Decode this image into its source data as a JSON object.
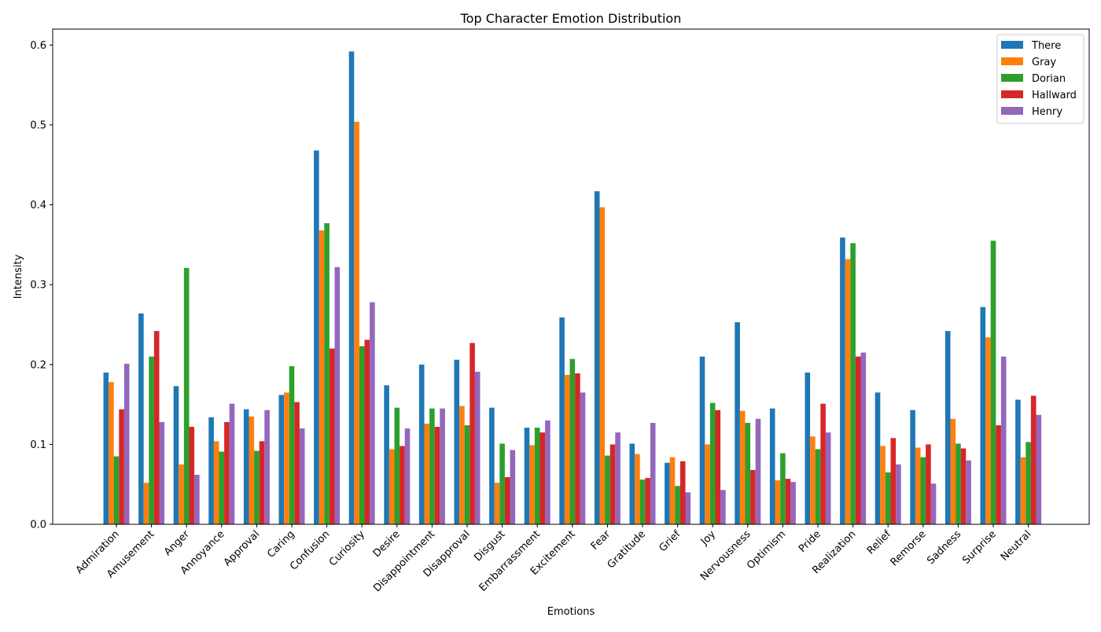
{
  "chart_data": {
    "type": "bar",
    "title": "Top Character Emotion Distribution",
    "xlabel": "Emotions",
    "ylabel": "Intensity",
    "ylim": [
      0,
      0.62
    ],
    "yticks": [
      0.0,
      0.1,
      0.2,
      0.3,
      0.4,
      0.5,
      0.6
    ],
    "ytick_labels": [
      "0.0",
      "0.1",
      "0.2",
      "0.3",
      "0.4",
      "0.5",
      "0.6"
    ],
    "grid": false,
    "legend_position": "top-right",
    "categories": [
      "Admiration",
      "Amusement",
      "Anger",
      "Annoyance",
      "Approval",
      "Caring",
      "Confusion",
      "Curiosity",
      "Desire",
      "Disappointment",
      "Disapproval",
      "Disgust",
      "Embarrassment",
      "Excitement",
      "Fear",
      "Gratitude",
      "Grief",
      "Joy",
      "Nervousness",
      "Optimism",
      "Pride",
      "Realization",
      "Relief",
      "Remorse",
      "Sadness",
      "Surprise",
      "Neutral"
    ],
    "series": [
      {
        "name": "There",
        "color": "#1f77b4",
        "values": [
          0.19,
          0.264,
          0.173,
          0.134,
          0.144,
          0.162,
          0.468,
          0.592,
          0.174,
          0.2,
          0.206,
          0.146,
          0.121,
          0.259,
          0.417,
          0.101,
          0.077,
          0.21,
          0.253,
          0.145,
          0.19,
          0.359,
          0.165,
          0.143,
          0.242,
          0.272,
          0.156
        ]
      },
      {
        "name": "Gray",
        "color": "#ff7f0e",
        "values": [
          0.178,
          0.052,
          0.075,
          0.104,
          0.135,
          0.165,
          0.368,
          0.504,
          0.094,
          0.126,
          0.148,
          0.052,
          0.099,
          0.187,
          0.397,
          0.088,
          0.084,
          0.1,
          0.142,
          0.055,
          0.11,
          0.332,
          0.098,
          0.096,
          0.132,
          0.234,
          0.084
        ]
      },
      {
        "name": "Dorian",
        "color": "#2ca02c",
        "values": [
          0.085,
          0.21,
          0.321,
          0.091,
          0.092,
          0.198,
          0.377,
          0.223,
          0.146,
          0.145,
          0.124,
          0.101,
          0.121,
          0.207,
          0.086,
          0.056,
          0.048,
          0.152,
          0.127,
          0.089,
          0.094,
          0.352,
          0.065,
          0.084,
          0.101,
          0.355,
          0.103
        ]
      },
      {
        "name": "Hallward",
        "color": "#d62728",
        "values": [
          0.144,
          0.242,
          0.122,
          0.128,
          0.104,
          0.153,
          0.22,
          0.231,
          0.098,
          0.122,
          0.227,
          0.059,
          0.115,
          0.189,
          0.1,
          0.058,
          0.079,
          0.143,
          0.068,
          0.057,
          0.151,
          0.21,
          0.108,
          0.1,
          0.095,
          0.124,
          0.161
        ]
      },
      {
        "name": "Henry",
        "color": "#9467bd",
        "values": [
          0.201,
          0.128,
          0.062,
          0.151,
          0.143,
          0.12,
          0.322,
          0.278,
          0.12,
          0.145,
          0.191,
          0.093,
          0.13,
          0.165,
          0.115,
          0.127,
          0.04,
          0.043,
          0.132,
          0.053,
          0.115,
          0.215,
          0.075,
          0.051,
          0.08,
          0.21,
          0.137
        ]
      }
    ]
  }
}
